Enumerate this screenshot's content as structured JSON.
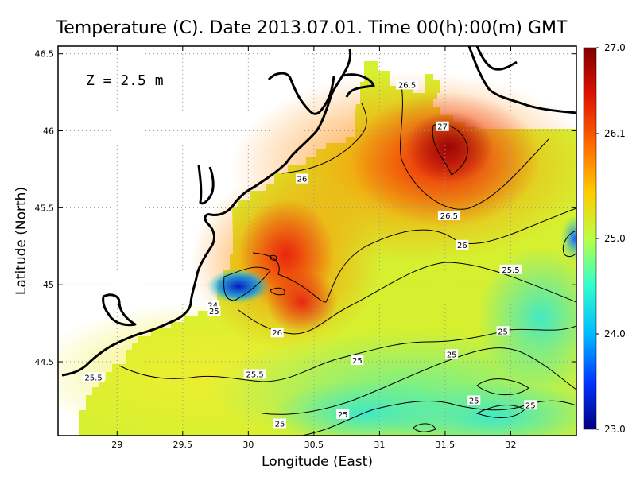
{
  "chart_data": {
    "type": "heatmap",
    "title": "Temperature (C). Date 2013.07.01. Time 00(h):00(m) GMT",
    "xlabel": "Longitude (East)",
    "ylabel": "Latitude (North)",
    "annotation": "Z = 2.5 m",
    "xlim": [
      28.55,
      32.5
    ],
    "ylim": [
      44.02,
      46.55
    ],
    "xticks": [
      29,
      29.5,
      30,
      30.5,
      31,
      31.5,
      32
    ],
    "xtick_labels": [
      "29",
      "29.5",
      "30",
      "30.5",
      "31",
      "31.5",
      "32"
    ],
    "yticks": [
      44.5,
      45,
      45.5,
      46,
      46.5
    ],
    "ytick_labels": [
      "44.5",
      "45",
      "45.5",
      "46",
      "46.5"
    ],
    "grid": true,
    "colorbar": {
      "min": 23.0,
      "max": 27.0,
      "tick_values": [
        27.0,
        26.1,
        25.0,
        24.0,
        23.0
      ],
      "tick_labels": [
        "27.0",
        "26.1",
        "25.0",
        "24.0",
        "23.0"
      ],
      "colors": [
        "#00007f",
        "#0040ff",
        "#00c0ff",
        "#40ffc0",
        "#c0ff40",
        "#ffc000",
        "#ff4000",
        "#7f0000"
      ]
    },
    "contour_labels": [
      {
        "text": "26.5",
        "lon": 31.21,
        "lat": 46.3
      },
      {
        "text": "27",
        "lon": 31.48,
        "lat": 46.03
      },
      {
        "text": "26",
        "lon": 30.41,
        "lat": 45.69
      },
      {
        "text": "26.5",
        "lon": 31.53,
        "lat": 45.45
      },
      {
        "text": "26",
        "lon": 31.63,
        "lat": 45.26
      },
      {
        "text": "25.5",
        "lon": 32.0,
        "lat": 45.1
      },
      {
        "text": "24",
        "lon": 29.73,
        "lat": 44.87
      },
      {
        "text": "25",
        "lon": 29.74,
        "lat": 44.83
      },
      {
        "text": "26",
        "lon": 30.22,
        "lat": 44.69
      },
      {
        "text": "25",
        "lon": 31.94,
        "lat": 44.7
      },
      {
        "text": "25",
        "lon": 30.83,
        "lat": 44.51
      },
      {
        "text": "25",
        "lon": 31.55,
        "lat": 44.55
      },
      {
        "text": "25.5",
        "lon": 28.82,
        "lat": 44.4
      },
      {
        "text": "25.5",
        "lon": 30.05,
        "lat": 44.42
      },
      {
        "text": "25",
        "lon": 31.72,
        "lat": 44.25
      },
      {
        "text": "25",
        "lon": 32.15,
        "lat": 44.22
      },
      {
        "text": "25",
        "lon": 30.72,
        "lat": 44.16
      },
      {
        "text": "25",
        "lon": 30.24,
        "lat": 44.1
      }
    ],
    "temperature_field": [
      {
        "lon": 31.5,
        "lat": 45.85,
        "t": 27.0
      },
      {
        "lon": 31.2,
        "lat": 46.3,
        "t": 26.5
      },
      {
        "lon": 30.3,
        "lat": 45.3,
        "t": 26.6
      },
      {
        "lon": 30.4,
        "lat": 44.95,
        "t": 26.5
      },
      {
        "lon": 30.0,
        "lat": 45.5,
        "t": 26.2
      },
      {
        "lon": 30.9,
        "lat": 45.6,
        "t": 26.3
      },
      {
        "lon": 32.3,
        "lat": 45.9,
        "t": 26.1
      },
      {
        "lon": 31.0,
        "lat": 45.1,
        "t": 25.8
      },
      {
        "lon": 32.3,
        "lat": 45.4,
        "t": 25.3
      },
      {
        "lon": 32.45,
        "lat": 45.3,
        "t": 24.3
      },
      {
        "lon": 29.85,
        "lat": 44.97,
        "t": 23.2
      },
      {
        "lon": 29.75,
        "lat": 44.95,
        "t": 23.4
      },
      {
        "lon": 29.3,
        "lat": 44.6,
        "t": 25.5
      },
      {
        "lon": 29.0,
        "lat": 44.35,
        "t": 25.3
      },
      {
        "lon": 29.5,
        "lat": 44.15,
        "t": 25.1
      },
      {
        "lon": 30.3,
        "lat": 44.1,
        "t": 24.9
      },
      {
        "lon": 31.0,
        "lat": 44.3,
        "t": 24.9
      },
      {
        "lon": 31.6,
        "lat": 44.6,
        "t": 24.9
      },
      {
        "lon": 32.3,
        "lat": 44.15,
        "t": 24.7
      },
      {
        "lon": 32.2,
        "lat": 44.7,
        "t": 25.0
      }
    ]
  }
}
